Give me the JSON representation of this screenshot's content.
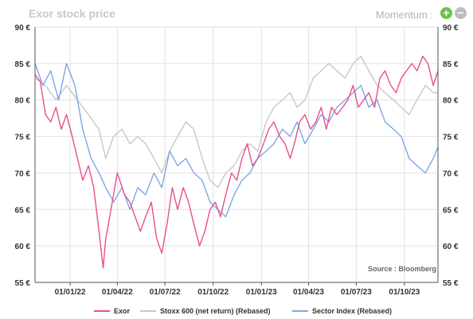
{
  "header": {
    "title": "Exor stock price",
    "momentum_label": "Momentum :",
    "plus_symbol": "+",
    "minus_symbol": "−"
  },
  "source_label": "Source : Bloomberg",
  "colors": {
    "exor": "#e8508a",
    "stoxx": "#c8c8c8",
    "sector": "#7fa6e8",
    "grid": "#e2e2e2",
    "axis": "#555555"
  },
  "chart_data": {
    "type": "line",
    "title": "Exor stock price",
    "ylim": [
      55,
      90
    ],
    "yticks": [
      55,
      60,
      65,
      70,
      75,
      80,
      85,
      90
    ],
    "ytick_labels": [
      "55 €",
      "60 €",
      "65 €",
      "70 €",
      "75 €",
      "80 €",
      "85 €",
      "90 €"
    ],
    "xlim": [
      "2021-10-26",
      "2023-12-04"
    ],
    "xticks": [
      "2022-01-01",
      "2022-04-01",
      "2022-07-01",
      "2022-10-01",
      "2023-01-01",
      "2023-04-01",
      "2023-07-01",
      "2023-10-01"
    ],
    "xtick_labels": [
      "01/01/22",
      "01/04/22",
      "01/07/22",
      "01/10/22",
      "01/01/23",
      "01/04/23",
      "01/07/23",
      "01/10/23"
    ],
    "grid": true,
    "legend_position": "bottom",
    "series": [
      {
        "name": "Exor",
        "color": "#e8508a",
        "x": [
          "2021-10-26",
          "2021-11-05",
          "2021-11-15",
          "2021-11-25",
          "2021-12-05",
          "2021-12-15",
          "2021-12-25",
          "2022-01-05",
          "2022-01-15",
          "2022-01-25",
          "2022-02-05",
          "2022-02-15",
          "2022-02-25",
          "2022-03-05",
          "2022-03-10",
          "2022-03-20",
          "2022-04-01",
          "2022-04-15",
          "2022-04-25",
          "2022-05-05",
          "2022-05-15",
          "2022-05-25",
          "2022-06-05",
          "2022-06-15",
          "2022-06-25",
          "2022-07-05",
          "2022-07-15",
          "2022-07-25",
          "2022-08-05",
          "2022-08-15",
          "2022-08-25",
          "2022-09-05",
          "2022-09-15",
          "2022-09-25",
          "2022-10-05",
          "2022-10-15",
          "2022-10-25",
          "2022-11-05",
          "2022-11-15",
          "2022-11-25",
          "2022-12-05",
          "2022-12-15",
          "2022-12-25",
          "2023-01-05",
          "2023-01-15",
          "2023-01-25",
          "2023-02-05",
          "2023-02-15",
          "2023-02-25",
          "2023-03-05",
          "2023-03-15",
          "2023-03-25",
          "2023-04-05",
          "2023-04-15",
          "2023-04-25",
          "2023-05-05",
          "2023-05-15",
          "2023-05-25",
          "2023-06-05",
          "2023-06-15",
          "2023-06-25",
          "2023-07-05",
          "2023-07-15",
          "2023-07-25",
          "2023-08-05",
          "2023-08-15",
          "2023-08-25",
          "2023-09-05",
          "2023-09-15",
          "2023-09-25",
          "2023-10-05",
          "2023-10-15",
          "2023-10-25",
          "2023-11-05",
          "2023-11-15",
          "2023-11-25",
          "2023-12-04"
        ],
        "values": [
          83.5,
          82.5,
          78,
          77,
          79,
          76,
          78,
          75,
          72,
          69,
          71,
          68,
          62,
          57,
          61,
          65,
          70,
          67,
          66,
          64,
          62,
          64,
          66,
          61,
          59,
          63,
          68,
          65,
          68,
          66,
          63,
          60,
          62,
          65,
          66,
          64,
          67,
          70,
          69,
          72,
          74,
          71,
          72,
          74,
          76,
          77,
          75,
          74,
          72,
          74,
          77,
          78,
          76,
          77,
          79,
          76,
          79,
          78,
          79,
          80,
          82,
          79,
          80,
          81,
          79,
          83,
          84,
          82,
          81,
          83,
          84,
          85,
          84,
          86,
          85,
          82,
          84
        ]
      },
      {
        "name": "Stoxx 600 (net return) (Rebased)",
        "color": "#c8c8c8",
        "x": [
          "2021-10-26",
          "2021-11-15",
          "2021-12-05",
          "2021-12-25",
          "2022-01-15",
          "2022-02-05",
          "2022-02-25",
          "2022-03-10",
          "2022-03-25",
          "2022-04-10",
          "2022-04-25",
          "2022-05-10",
          "2022-05-25",
          "2022-06-10",
          "2022-06-25",
          "2022-07-10",
          "2022-07-25",
          "2022-08-10",
          "2022-08-25",
          "2022-09-10",
          "2022-09-25",
          "2022-10-10",
          "2022-10-25",
          "2022-11-10",
          "2022-11-25",
          "2022-12-10",
          "2022-12-25",
          "2023-01-10",
          "2023-01-25",
          "2023-02-10",
          "2023-02-25",
          "2023-03-10",
          "2023-03-25",
          "2023-04-10",
          "2023-04-25",
          "2023-05-10",
          "2023-05-25",
          "2023-06-10",
          "2023-06-25",
          "2023-07-10",
          "2023-07-25",
          "2023-08-10",
          "2023-08-25",
          "2023-09-10",
          "2023-09-25",
          "2023-10-10",
          "2023-10-25",
          "2023-11-10",
          "2023-11-25",
          "2023-12-04"
        ],
        "values": [
          83,
          82,
          80,
          82,
          80,
          78,
          76,
          72,
          75,
          76,
          74,
          75,
          74,
          72,
          70,
          73,
          75,
          77,
          76,
          72,
          69,
          68,
          70,
          71,
          73,
          74,
          73,
          77,
          79,
          80,
          81,
          79,
          80,
          83,
          84,
          85,
          84,
          83,
          85,
          86,
          84,
          82,
          81,
          80,
          79,
          78,
          80,
          82,
          81,
          81
        ]
      },
      {
        "name": "Sector Index (Rebased)",
        "color": "#7fa6e8",
        "x": [
          "2021-10-26",
          "2021-11-10",
          "2021-11-25",
          "2021-12-10",
          "2021-12-25",
          "2022-01-10",
          "2022-01-25",
          "2022-02-10",
          "2022-02-25",
          "2022-03-10",
          "2022-03-25",
          "2022-04-10",
          "2022-04-25",
          "2022-05-10",
          "2022-05-25",
          "2022-06-10",
          "2022-06-25",
          "2022-07-10",
          "2022-07-25",
          "2022-08-10",
          "2022-08-25",
          "2022-09-10",
          "2022-09-25",
          "2022-10-10",
          "2022-10-25",
          "2022-11-10",
          "2022-11-25",
          "2022-12-10",
          "2022-12-25",
          "2023-01-10",
          "2023-01-25",
          "2023-02-10",
          "2023-02-25",
          "2023-03-10",
          "2023-03-25",
          "2023-04-10",
          "2023-04-25",
          "2023-05-10",
          "2023-05-25",
          "2023-06-10",
          "2023-06-25",
          "2023-07-10",
          "2023-07-25",
          "2023-08-10",
          "2023-08-25",
          "2023-09-10",
          "2023-09-25",
          "2023-10-10",
          "2023-10-25",
          "2023-11-10",
          "2023-11-25",
          "2023-12-04"
        ],
        "values": [
          85,
          82,
          84,
          80,
          85,
          82,
          76,
          72,
          70,
          68,
          66,
          68,
          65,
          68,
          67,
          70,
          68,
          73,
          71,
          72,
          70,
          69,
          66,
          65,
          64,
          67,
          69,
          70,
          72,
          73,
          74,
          76,
          75,
          77,
          74,
          76,
          78,
          77,
          79,
          80,
          81,
          82,
          79,
          80,
          77,
          76,
          75,
          72,
          71,
          70,
          72,
          73.5
        ]
      }
    ]
  }
}
